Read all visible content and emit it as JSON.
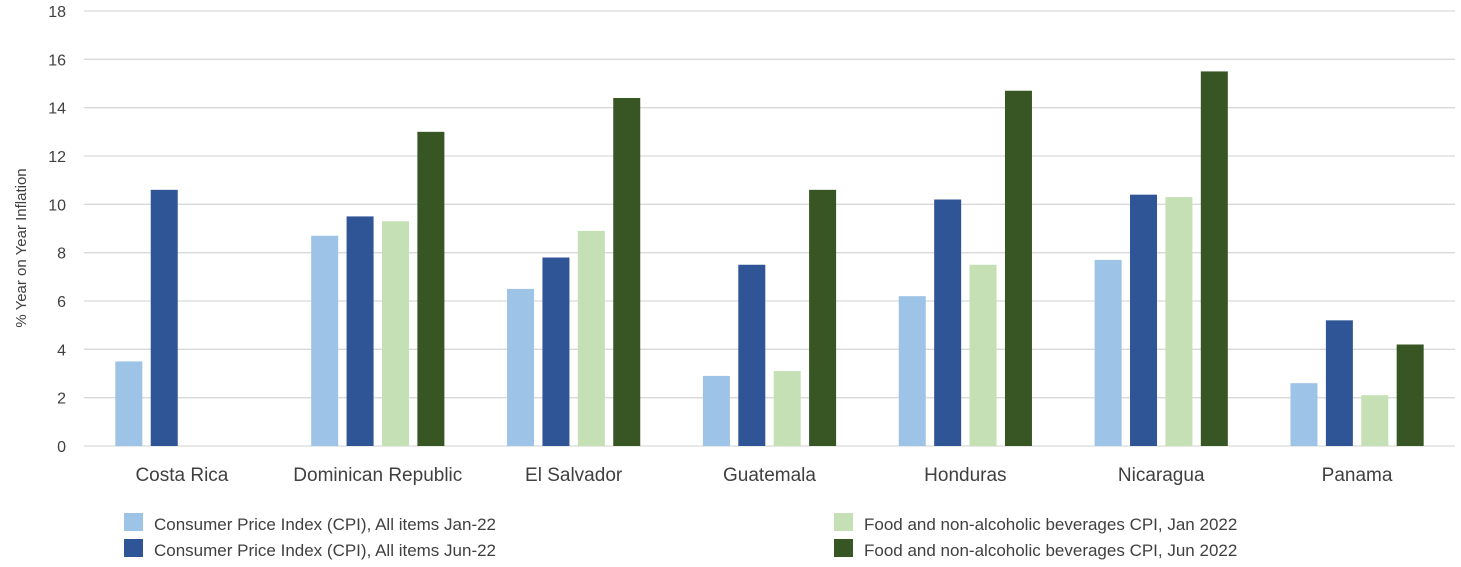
{
  "chart_data": {
    "type": "bar",
    "ylabel": "% Year on Year Inflation",
    "ylim": [
      0,
      18
    ],
    "yticks": [
      0,
      2,
      4,
      6,
      8,
      10,
      12,
      14,
      16,
      18
    ],
    "grid": true,
    "legend_position": "bottom",
    "categories": [
      "Costa Rica",
      "Dominican Republic",
      "El Salvador",
      "Guatemala",
      "Honduras",
      "Nicaragua",
      "Panama"
    ],
    "series": [
      {
        "name": "Consumer Price Index (CPI), All items Jan-22",
        "color": "#9dc3e6",
        "values": [
          3.5,
          8.7,
          6.5,
          2.9,
          6.2,
          7.7,
          2.6
        ]
      },
      {
        "name": "Consumer Price Index (CPI), All items Jun-22",
        "color": "#2f5597",
        "values": [
          10.6,
          9.5,
          7.8,
          7.5,
          10.2,
          10.4,
          5.2
        ]
      },
      {
        "name": "Food and non-alcoholic beverages CPI, Jan 2022",
        "color": "#c5e0b4",
        "values": [
          null,
          9.3,
          8.9,
          3.1,
          7.5,
          10.3,
          2.1
        ]
      },
      {
        "name": "Food and non-alcoholic beverages CPI, Jun 2022",
        "color": "#375623",
        "values": [
          null,
          13.0,
          14.4,
          10.6,
          14.7,
          15.5,
          4.2
        ]
      }
    ]
  }
}
